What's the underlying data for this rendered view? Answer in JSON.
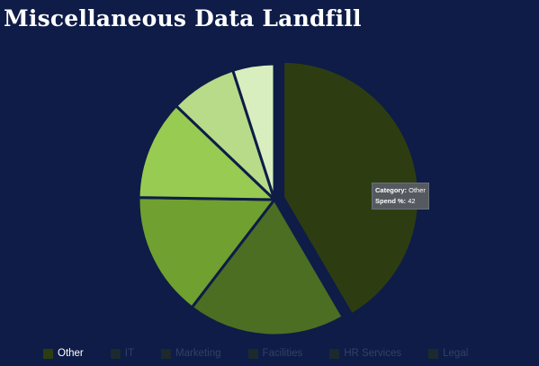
{
  "chart_data": {
    "type": "pie",
    "title": "Miscellaneous Data Landfill",
    "categories": [
      "Other",
      "Facilities",
      "Marketing",
      "IT",
      "HR Services",
      "Legal"
    ],
    "values": [
      42,
      19,
      15,
      12,
      8,
      5
    ],
    "colors": [
      "#2d3d11",
      "#4b6e23",
      "#70a030",
      "#98cb52",
      "#b7db88",
      "#d8eebf"
    ],
    "exploded": "Other",
    "legend_position": "bottom",
    "legend": [
      {
        "label": "Other",
        "color": "#2d3d11",
        "active": true
      },
      {
        "label": "IT",
        "color": "#2d3d11",
        "active": false
      },
      {
        "label": "Marketing",
        "color": "#2d3d11",
        "active": false
      },
      {
        "label": "Facilities",
        "color": "#2d3d11",
        "active": false
      },
      {
        "label": "HR Services",
        "color": "#2d3d11",
        "active": false
      },
      {
        "label": "Legal",
        "color": "#2d3d11",
        "active": false
      }
    ],
    "tooltip": {
      "category_label": "Category:",
      "category_value": "Other",
      "value_label": "Spend %:",
      "value_value": "42"
    }
  },
  "theme": {
    "background": "#0e1c47",
    "text": "#ffffff",
    "legend_active_text": "#ffffff",
    "legend_inactive_text": "#5f6c8a"
  }
}
